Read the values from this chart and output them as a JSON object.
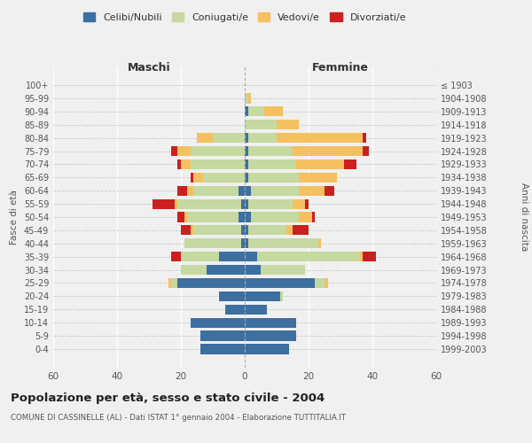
{
  "age_groups": [
    "100+",
    "95-99",
    "90-94",
    "85-89",
    "80-84",
    "75-79",
    "70-74",
    "65-69",
    "60-64",
    "55-59",
    "50-54",
    "45-49",
    "40-44",
    "35-39",
    "30-34",
    "25-29",
    "20-24",
    "15-19",
    "10-14",
    "5-9",
    "0-4"
  ],
  "birth_years": [
    "≤ 1903",
    "1904-1908",
    "1909-1913",
    "1914-1918",
    "1919-1923",
    "1924-1928",
    "1929-1933",
    "1934-1938",
    "1939-1943",
    "1944-1948",
    "1949-1953",
    "1954-1958",
    "1959-1963",
    "1964-1968",
    "1969-1973",
    "1974-1978",
    "1979-1983",
    "1984-1988",
    "1989-1993",
    "1994-1998",
    "1999-2003"
  ],
  "male_celibi": [
    0,
    0,
    0,
    0,
    0,
    0,
    0,
    0,
    2,
    1,
    2,
    1,
    1,
    8,
    12,
    21,
    8,
    6,
    17,
    14,
    14
  ],
  "male_coniugati": [
    0,
    0,
    0,
    0,
    10,
    17,
    17,
    13,
    14,
    20,
    16,
    15,
    18,
    12,
    8,
    2,
    0,
    0,
    0,
    0,
    0
  ],
  "male_vedovi": [
    0,
    0,
    0,
    0,
    5,
    4,
    3,
    3,
    2,
    1,
    1,
    1,
    0,
    0,
    0,
    1,
    0,
    0,
    0,
    0,
    0
  ],
  "male_divorziati": [
    0,
    0,
    0,
    0,
    0,
    2,
    1,
    1,
    3,
    7,
    2,
    3,
    0,
    3,
    0,
    0,
    0,
    0,
    0,
    0,
    0
  ],
  "female_celibi": [
    0,
    0,
    1,
    0,
    1,
    1,
    1,
    1,
    2,
    1,
    2,
    1,
    1,
    4,
    5,
    22,
    11,
    7,
    16,
    16,
    14
  ],
  "female_coniugati": [
    0,
    1,
    5,
    10,
    9,
    14,
    15,
    16,
    15,
    14,
    15,
    12,
    22,
    32,
    14,
    3,
    1,
    0,
    0,
    0,
    0
  ],
  "female_vedovi": [
    0,
    1,
    6,
    7,
    27,
    22,
    15,
    12,
    8,
    4,
    4,
    2,
    1,
    1,
    0,
    1,
    0,
    0,
    0,
    0,
    0
  ],
  "female_divorziati": [
    0,
    0,
    0,
    0,
    1,
    2,
    4,
    0,
    3,
    1,
    1,
    5,
    0,
    4,
    0,
    0,
    0,
    0,
    0,
    0,
    0
  ],
  "colors": {
    "celibi": "#3d6fa0",
    "coniugati": "#c5d9a0",
    "vedovi": "#f5c060",
    "divorziati": "#cc2020"
  },
  "xlim": 60,
  "title": "Popolazione per età, sesso e stato civile - 2004",
  "subtitle": "COMUNE DI CASSINELLE (AL) - Dati ISTAT 1° gennaio 2004 - Elaborazione TUTTITALIA.IT",
  "ylabel_left": "Fasce di età",
  "ylabel_right": "Anni di nascita",
  "xlabel_left": "Maschi",
  "xlabel_right": "Femmine",
  "bg_color": "#f0f0f0"
}
